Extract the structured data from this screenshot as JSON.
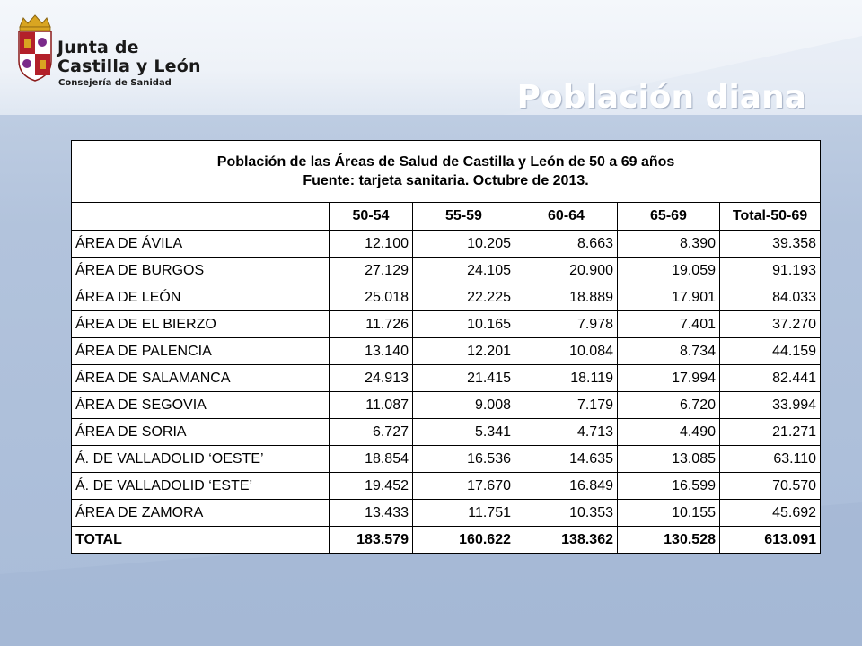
{
  "logo": {
    "line1": "Junta de",
    "line2": "Castilla y León",
    "line3": "Consejería de Sanidad"
  },
  "title": "Población diana",
  "table": {
    "caption_line1": "Población de las Áreas de Salud de Castilla y León de 50 a 69 años",
    "caption_line2": "Fuente: tarjeta sanitaria. Octubre de 2013.",
    "columns": [
      "",
      "50-54",
      "55-59",
      "60-64",
      "65-69",
      "Total-50-69"
    ],
    "rows": [
      {
        "area": "ÁREA DE ÁVILA",
        "c1": "12.100",
        "c2": "10.205",
        "c3": "8.663",
        "c4": "8.390",
        "total": "39.358"
      },
      {
        "area": "ÁREA DE  BURGOS",
        "c1": "27.129",
        "c2": "24.105",
        "c3": "20.900",
        "c4": "19.059",
        "total": "91.193"
      },
      {
        "area": "ÁREA DE LEÓN",
        "c1": "25.018",
        "c2": "22.225",
        "c3": "18.889",
        "c4": "17.901",
        "total": "84.033"
      },
      {
        "area": "ÁREA DE EL BIERZO",
        "c1": "11.726",
        "c2": "10.165",
        "c3": "7.978",
        "c4": "7.401",
        "total": "37.270"
      },
      {
        "area": "ÁREA DE PALENCIA",
        "c1": "13.140",
        "c2": "12.201",
        "c3": "10.084",
        "c4": "8.734",
        "total": "44.159"
      },
      {
        "area": "ÁREA DE SALAMANCA",
        "c1": "24.913",
        "c2": "21.415",
        "c3": "18.119",
        "c4": "17.994",
        "total": "82.441"
      },
      {
        "area": "ÁREA DE SEGOVIA",
        "c1": "11.087",
        "c2": "9.008",
        "c3": "7.179",
        "c4": "6.720",
        "total": "33.994"
      },
      {
        "area": "ÁREA DE SORIA",
        "c1": "6.727",
        "c2": "5.341",
        "c3": "4.713",
        "c4": "4.490",
        "total": "21.271"
      },
      {
        "area": "Á. DE VALLADOLID ‘OESTE’",
        "c1": "18.854",
        "c2": "16.536",
        "c3": "14.635",
        "c4": "13.085",
        "total": "63.110"
      },
      {
        "area": "Á. DE VALLADOLID ‘ESTE’",
        "c1": "19.452",
        "c2": "17.670",
        "c3": "16.849",
        "c4": "16.599",
        "total": "70.570"
      },
      {
        "area": "ÁREA DE ZAMORA",
        "c1": "13.433",
        "c2": "11.751",
        "c3": "10.353",
        "c4": "10.155",
        "total": "45.692"
      }
    ],
    "total_row": {
      "area": "TOTAL",
      "c1": "183.579",
      "c2": "160.622",
      "c3": "138.362",
      "c4": "130.528",
      "total": "613.091"
    }
  },
  "colors": {
    "background": "#b2c3dc",
    "title_text": "#ffffff",
    "shield_red": "#b3202a",
    "shield_gold": "#d9a521"
  },
  "icons": {
    "logo": "castilla-leon-shield-icon"
  }
}
